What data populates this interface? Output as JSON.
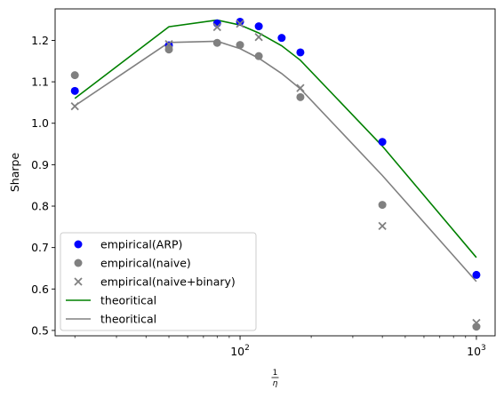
{
  "chart_data": {
    "type": "scatter",
    "title": "",
    "ylabel": "Sharpe",
    "xlabel": {
      "numerator": "1",
      "denominator": "η"
    },
    "xscale": "log",
    "xlim": [
      16.5,
      1200
    ],
    "ylim": [
      0.487,
      1.276
    ],
    "x_major_ticks": [
      {
        "value": 100,
        "base": "10",
        "exp": "2"
      },
      {
        "value": 1000,
        "base": "10",
        "exp": "3"
      }
    ],
    "x_minor_ticks": [
      20,
      30,
      40,
      50,
      60,
      70,
      80,
      90,
      200,
      300,
      400,
      500,
      600,
      700,
      800,
      900
    ],
    "y_ticks": [
      0.5,
      0.6,
      0.7,
      0.8,
      0.9,
      1.0,
      1.1,
      1.2
    ],
    "y_tick_labels": [
      "0.5",
      "0.6",
      "0.7",
      "0.8",
      "0.9",
      "1.0",
      "1.1",
      "1.2"
    ],
    "grid": false,
    "legend_position": "lower-left",
    "series": [
      {
        "name": "empirical(ARP)",
        "kind": "scatter",
        "marker": "circle",
        "color": "#0000ff",
        "x": [
          20,
          50,
          80,
          100,
          120,
          150,
          180,
          400,
          1000
        ],
        "y": [
          1.078,
          1.188,
          1.241,
          1.245,
          1.234,
          1.206,
          1.171,
          0.955,
          0.634
        ]
      },
      {
        "name": "empirical(naive)",
        "kind": "scatter",
        "marker": "circle",
        "color": "#808080",
        "x": [
          20,
          50,
          80,
          100,
          120,
          180,
          400,
          1000
        ],
        "y": [
          1.116,
          1.178,
          1.194,
          1.189,
          1.162,
          1.063,
          0.803,
          0.509
        ]
      },
      {
        "name": "empirical(naive+binary)",
        "kind": "scatter",
        "marker": "x",
        "color": "#808080",
        "x": [
          20,
          50,
          80,
          100,
          120,
          180,
          400,
          1000
        ],
        "y": [
          1.041,
          1.191,
          1.232,
          1.24,
          1.208,
          1.085,
          0.752,
          0.518
        ]
      },
      {
        "name": "theoritical",
        "kind": "line",
        "color": "#008000",
        "x": [
          20,
          50,
          80,
          100,
          120,
          150,
          180,
          400,
          1000
        ],
        "y": [
          1.06,
          1.233,
          1.249,
          1.237,
          1.218,
          1.187,
          1.152,
          0.945,
          0.676
        ]
      },
      {
        "name": "theoritical",
        "kind": "line",
        "color": "#808080",
        "x": [
          20,
          50,
          80,
          100,
          120,
          150,
          180,
          400,
          1000
        ],
        "y": [
          1.042,
          1.195,
          1.198,
          1.18,
          1.157,
          1.12,
          1.083,
          0.874,
          0.618
        ]
      }
    ]
  }
}
